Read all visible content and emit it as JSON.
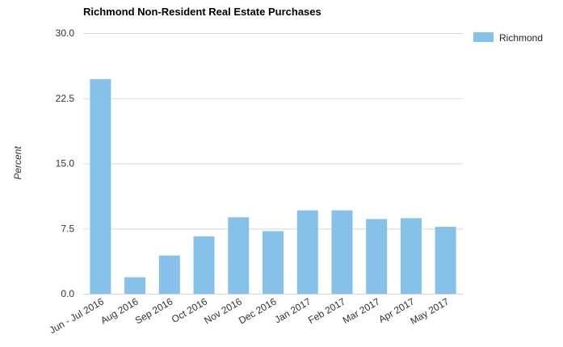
{
  "chart_data": {
    "type": "bar",
    "title": "Richmond Non-Resident Real Estate Purchases",
    "xlabel": "",
    "ylabel": "Percent",
    "ylim": [
      0,
      30
    ],
    "yticks": [
      "0.0",
      "7.5",
      "15.0",
      "22.5",
      "30.0"
    ],
    "grid": true,
    "legend_position": "top-right",
    "categories": [
      "Jun - Jul 2016",
      "Aug 2016",
      "Sep 2016",
      "Oct 2016",
      "Nov 2016",
      "Dec 2016",
      "Jan 2017",
      "Feb 2017",
      "Mar 2017",
      "Apr 2017",
      "May 2017"
    ],
    "series": [
      {
        "name": "Richmond",
        "color": "#85c1e9",
        "values": [
          24.7,
          1.9,
          4.4,
          6.6,
          8.8,
          7.2,
          9.6,
          9.6,
          8.6,
          8.7,
          7.7
        ]
      }
    ]
  }
}
